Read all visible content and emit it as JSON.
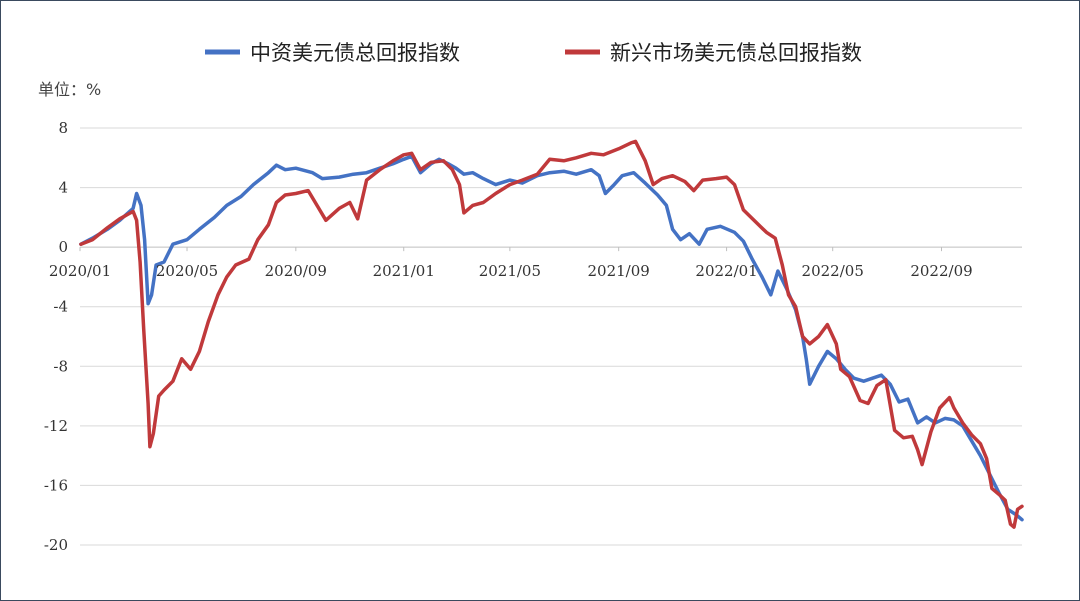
{
  "chart_data": {
    "type": "line",
    "unit_label": "单位：%",
    "xlim": [
      "2020/01",
      "2022/12"
    ],
    "ylim": [
      -20,
      8
    ],
    "y_ticks": [
      8,
      4,
      0,
      -4,
      -8,
      -12,
      -16,
      -20
    ],
    "y_tick_labels": [
      "8",
      "4",
      "0",
      "-4",
      "-8",
      "-12",
      "-16",
      "-20"
    ],
    "x_ticks": [
      "2020/01",
      "2020/05",
      "2020/09",
      "2021/01",
      "2021/05",
      "2021/09",
      "2022/01",
      "2022/05",
      "2022/09"
    ],
    "x_tick_labels": [
      "2020/01",
      "2020/05",
      "2020/09",
      "2021/01",
      "2021/05",
      "2021/09",
      "2022/01",
      "2022/05",
      "2022/09"
    ],
    "legend_position": "top",
    "grid": "horizontal",
    "series": [
      {
        "name": "中资美元债总回报指数",
        "color": "#4472c4",
        "points": [
          [
            "2020/01/02",
            0.2
          ],
          [
            "2020/01/15",
            0.6
          ],
          [
            "2020/02/01",
            1.2
          ],
          [
            "2020/02/15",
            1.8
          ],
          [
            "2020/03/01",
            2.6
          ],
          [
            "2020/03/05",
            3.6
          ],
          [
            "2020/03/10",
            2.8
          ],
          [
            "2020/03/14",
            0.5
          ],
          [
            "2020/03/18",
            -3.8
          ],
          [
            "2020/03/22",
            -3.2
          ],
          [
            "2020/03/27",
            -1.2
          ],
          [
            "2020/04/05",
            -1.0
          ],
          [
            "2020/04/15",
            0.2
          ],
          [
            "2020/05/01",
            0.5
          ],
          [
            "2020/05/15",
            1.2
          ],
          [
            "2020/06/01",
            2.0
          ],
          [
            "2020/06/15",
            2.8
          ],
          [
            "2020/07/01",
            3.4
          ],
          [
            "2020/07/15",
            4.2
          ],
          [
            "2020/08/01",
            5.0
          ],
          [
            "2020/08/10",
            5.5
          ],
          [
            "2020/08/20",
            5.2
          ],
          [
            "2020/09/01",
            5.3
          ],
          [
            "2020/09/20",
            5.0
          ],
          [
            "2020/10/01",
            4.6
          ],
          [
            "2020/10/20",
            4.7
          ],
          [
            "2020/11/05",
            4.9
          ],
          [
            "2020/11/20",
            5.0
          ],
          [
            "2020/12/05",
            5.3
          ],
          [
            "2020/12/20",
            5.6
          ],
          [
            "2021/01/01",
            5.9
          ],
          [
            "2021/01/10",
            6.1
          ],
          [
            "2021/01/20",
            5.0
          ],
          [
            "2021/02/01",
            5.6
          ],
          [
            "2021/02/10",
            5.9
          ],
          [
            "2021/02/20",
            5.6
          ],
          [
            "2021/03/01",
            5.3
          ],
          [
            "2021/03/10",
            4.9
          ],
          [
            "2021/03/20",
            5.0
          ],
          [
            "2021/04/01",
            4.6
          ],
          [
            "2021/04/15",
            4.2
          ],
          [
            "2021/05/01",
            4.5
          ],
          [
            "2021/05/15",
            4.3
          ],
          [
            "2021/06/01",
            4.8
          ],
          [
            "2021/06/15",
            5.0
          ],
          [
            "2021/07/01",
            5.1
          ],
          [
            "2021/07/15",
            4.9
          ],
          [
            "2021/08/01",
            5.2
          ],
          [
            "2021/08/10",
            4.8
          ],
          [
            "2021/08/17",
            3.6
          ],
          [
            "2021/08/27",
            4.2
          ],
          [
            "2021/09/05",
            4.8
          ],
          [
            "2021/09/18",
            5.0
          ],
          [
            "2021/10/01",
            4.3
          ],
          [
            "2021/10/15",
            3.5
          ],
          [
            "2021/10/25",
            2.8
          ],
          [
            "2021/11/01",
            1.2
          ],
          [
            "2021/11/10",
            0.5
          ],
          [
            "2021/11/20",
            0.9
          ],
          [
            "2021/12/01",
            0.2
          ],
          [
            "2021/12/10",
            1.2
          ],
          [
            "2021/12/25",
            1.4
          ],
          [
            "2022/01/10",
            1.0
          ],
          [
            "2022/01/20",
            0.4
          ],
          [
            "2022/01/30",
            -0.8
          ],
          [
            "2022/02/10",
            -2.0
          ],
          [
            "2022/02/20",
            -3.2
          ],
          [
            "2022/02/28",
            -1.6
          ],
          [
            "2022/03/10",
            -2.8
          ],
          [
            "2022/03/20",
            -4.2
          ],
          [
            "2022/03/28",
            -6.0
          ],
          [
            "2022/04/01",
            -7.5
          ],
          [
            "2022/04/05",
            -9.2
          ],
          [
            "2022/04/15",
            -8.0
          ],
          [
            "2022/04/25",
            -7.0
          ],
          [
            "2022/05/05",
            -7.5
          ],
          [
            "2022/05/15",
            -8.2
          ],
          [
            "2022/05/25",
            -8.8
          ],
          [
            "2022/06/05",
            -9.0
          ],
          [
            "2022/06/15",
            -8.8
          ],
          [
            "2022/06/25",
            -8.6
          ],
          [
            "2022/07/05",
            -9.2
          ],
          [
            "2022/07/15",
            -10.4
          ],
          [
            "2022/07/25",
            -10.2
          ],
          [
            "2022/08/05",
            -11.8
          ],
          [
            "2022/08/15",
            -11.4
          ],
          [
            "2022/08/25",
            -11.8
          ],
          [
            "2022/09/05",
            -11.5
          ],
          [
            "2022/09/15",
            -11.6
          ],
          [
            "2022/09/25",
            -12.0
          ],
          [
            "2022/10/05",
            -13.0
          ],
          [
            "2022/10/15",
            -14.0
          ],
          [
            "2022/10/25",
            -15.2
          ],
          [
            "2022/11/05",
            -16.5
          ],
          [
            "2022/11/15",
            -17.6
          ],
          [
            "2022/11/25",
            -18.0
          ],
          [
            "2022/12/01",
            -18.3
          ]
        ]
      },
      {
        "name": "新兴市场美元债总回报指数",
        "color": "#c0393b",
        "points": [
          [
            "2020/01/02",
            0.2
          ],
          [
            "2020/01/15",
            0.5
          ],
          [
            "2020/02/01",
            1.3
          ],
          [
            "2020/02/15",
            1.9
          ],
          [
            "2020/03/01",
            2.4
          ],
          [
            "2020/03/05",
            1.8
          ],
          [
            "2020/03/09",
            -1.0
          ],
          [
            "2020/03/13",
            -5.5
          ],
          [
            "2020/03/18",
            -10.5
          ],
          [
            "2020/03/20",
            -13.4
          ],
          [
            "2020/03/24",
            -12.5
          ],
          [
            "2020/03/30",
            -10.0
          ],
          [
            "2020/04/05",
            -9.6
          ],
          [
            "2020/04/15",
            -9.0
          ],
          [
            "2020/04/25",
            -7.5
          ],
          [
            "2020/05/05",
            -8.2
          ],
          [
            "2020/05/15",
            -7.0
          ],
          [
            "2020/05/25",
            -5.0
          ],
          [
            "2020/06/05",
            -3.2
          ],
          [
            "2020/06/15",
            -2.0
          ],
          [
            "2020/06/25",
            -1.2
          ],
          [
            "2020/07/10",
            -0.8
          ],
          [
            "2020/07/20",
            0.5
          ],
          [
            "2020/08/01",
            1.5
          ],
          [
            "2020/08/10",
            3.0
          ],
          [
            "2020/08/20",
            3.5
          ],
          [
            "2020/09/01",
            3.6
          ],
          [
            "2020/09/15",
            3.8
          ],
          [
            "2020/09/25",
            2.8
          ],
          [
            "2020/10/05",
            1.8
          ],
          [
            "2020/10/20",
            2.6
          ],
          [
            "2020/11/01",
            3.0
          ],
          [
            "2020/11/10",
            1.9
          ],
          [
            "2020/11/20",
            4.5
          ],
          [
            "2020/12/05",
            5.2
          ],
          [
            "2020/12/20",
            5.8
          ],
          [
            "2021/01/01",
            6.2
          ],
          [
            "2021/01/10",
            6.3
          ],
          [
            "2021/01/20",
            5.2
          ],
          [
            "2021/02/01",
            5.7
          ],
          [
            "2021/02/15",
            5.8
          ],
          [
            "2021/02/25",
            5.2
          ],
          [
            "2021/03/05",
            4.2
          ],
          [
            "2021/03/10",
            2.3
          ],
          [
            "2021/03/20",
            2.8
          ],
          [
            "2021/04/01",
            3.0
          ],
          [
            "2021/04/15",
            3.6
          ],
          [
            "2021/05/01",
            4.2
          ],
          [
            "2021/05/15",
            4.5
          ],
          [
            "2021/06/01",
            4.9
          ],
          [
            "2021/06/15",
            5.9
          ],
          [
            "2021/07/01",
            5.8
          ],
          [
            "2021/07/15",
            6.0
          ],
          [
            "2021/08/01",
            6.3
          ],
          [
            "2021/08/15",
            6.2
          ],
          [
            "2021/09/01",
            6.6
          ],
          [
            "2021/09/15",
            7.0
          ],
          [
            "2021/09/20",
            7.1
          ],
          [
            "2021/10/01",
            5.8
          ],
          [
            "2021/10/10",
            4.2
          ],
          [
            "2021/10/20",
            4.6
          ],
          [
            "2021/11/01",
            4.8
          ],
          [
            "2021/11/15",
            4.4
          ],
          [
            "2021/11/25",
            3.8
          ],
          [
            "2021/12/05",
            4.5
          ],
          [
            "2021/12/20",
            4.6
          ],
          [
            "2022/01/01",
            4.7
          ],
          [
            "2022/01/10",
            4.2
          ],
          [
            "2022/01/20",
            2.5
          ],
          [
            "2022/02/01",
            1.8
          ],
          [
            "2022/02/15",
            1.0
          ],
          [
            "2022/02/25",
            0.6
          ],
          [
            "2022/03/05",
            -1.2
          ],
          [
            "2022/03/12",
            -3.2
          ],
          [
            "2022/03/20",
            -4.0
          ],
          [
            "2022/03/28",
            -6.0
          ],
          [
            "2022/04/05",
            -6.5
          ],
          [
            "2022/04/15",
            -6.0
          ],
          [
            "2022/04/25",
            -5.2
          ],
          [
            "2022/05/05",
            -6.5
          ],
          [
            "2022/05/10",
            -8.2
          ],
          [
            "2022/05/20",
            -8.7
          ],
          [
            "2022/06/01",
            -10.3
          ],
          [
            "2022/06/10",
            -10.5
          ],
          [
            "2022/06/20",
            -9.3
          ],
          [
            "2022/06/30",
            -8.9
          ],
          [
            "2022/07/05",
            -10.6
          ],
          [
            "2022/07/10",
            -12.3
          ],
          [
            "2022/07/20",
            -12.8
          ],
          [
            "2022/07/30",
            -12.7
          ],
          [
            "2022/08/05",
            -13.6
          ],
          [
            "2022/08/10",
            -14.6
          ],
          [
            "2022/08/20",
            -12.4
          ],
          [
            "2022/08/30",
            -10.8
          ],
          [
            "2022/09/10",
            -10.1
          ],
          [
            "2022/09/15",
            -10.8
          ],
          [
            "2022/09/25",
            -11.8
          ],
          [
            "2022/10/05",
            -12.6
          ],
          [
            "2022/10/15",
            -13.2
          ],
          [
            "2022/10/22",
            -14.2
          ],
          [
            "2022/10/28",
            -16.2
          ],
          [
            "2022/11/05",
            -16.6
          ],
          [
            "2022/11/12",
            -17.0
          ],
          [
            "2022/11/18",
            -18.6
          ],
          [
            "2022/11/22",
            -18.8
          ],
          [
            "2022/11/26",
            -17.6
          ],
          [
            "2022/12/01",
            -17.4
          ]
        ]
      }
    ]
  }
}
